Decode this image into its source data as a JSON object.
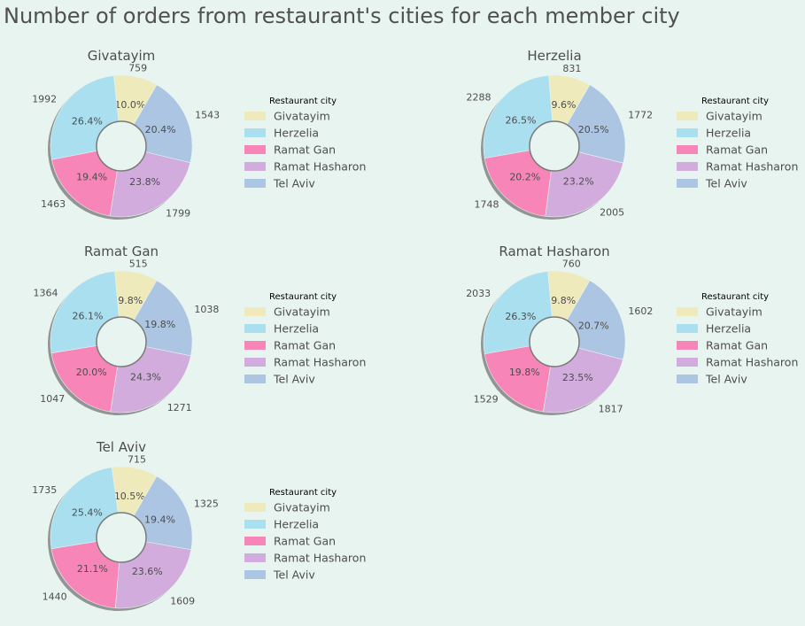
{
  "title": "Number of orders from restaurant's cities for each member city",
  "legend_title": "Restaurant city",
  "colors": {
    "background": "#e8f4f0",
    "Givatayim": "#eeeabb",
    "Herzelia": "#aadff0",
    "Ramat Gan": "#f785b8",
    "Ramat Hasharon": "#d2acdc",
    "Tel Aviv": "#abc5e2"
  },
  "chart_data": [
    {
      "type": "pie",
      "title": "Givatayim",
      "categories": [
        "Givatayim",
        "Herzelia",
        "Ramat Gan",
        "Ramat Hasharon",
        "Tel Aviv"
      ],
      "values": [
        759,
        1992,
        1463,
        1799,
        1543
      ],
      "percent_labels": [
        "10.0%",
        "26.4%",
        "19.4%",
        "23.8%",
        "20.4%"
      ],
      "legend_title": "Restaurant city"
    },
    {
      "type": "pie",
      "title": "Herzelia",
      "categories": [
        "Givatayim",
        "Herzelia",
        "Ramat Gan",
        "Ramat Hasharon",
        "Tel Aviv"
      ],
      "values": [
        831,
        2288,
        1748,
        2005,
        1772
      ],
      "percent_labels": [
        "9.6%",
        "26.5%",
        "20.2%",
        "23.2%",
        "20.5%"
      ],
      "legend_title": "Restaurant city"
    },
    {
      "type": "pie",
      "title": "Ramat Gan",
      "categories": [
        "Givatayim",
        "Herzelia",
        "Ramat Gan",
        "Ramat Hasharon",
        "Tel Aviv"
      ],
      "values": [
        515,
        1364,
        1047,
        1271,
        1038
      ],
      "percent_labels": [
        "9.8%",
        "26.1%",
        "20.0%",
        "24.3%",
        "19.8%"
      ],
      "legend_title": "Restaurant city"
    },
    {
      "type": "pie",
      "title": "Ramat Hasharon",
      "categories": [
        "Givatayim",
        "Herzelia",
        "Ramat Gan",
        "Ramat Hasharon",
        "Tel Aviv"
      ],
      "values": [
        760,
        2033,
        1529,
        1817,
        1602
      ],
      "percent_labels": [
        "9.8%",
        "26.3%",
        "19.8%",
        "23.5%",
        "20.7%"
      ],
      "legend_title": "Restaurant city"
    },
    {
      "type": "pie",
      "title": "Tel Aviv",
      "categories": [
        "Givatayim",
        "Herzelia",
        "Ramat Gan",
        "Ramat Hasharon",
        "Tel Aviv"
      ],
      "values": [
        715,
        1735,
        1440,
        1609,
        1325
      ],
      "percent_labels": [
        "10.5%",
        "25.4%",
        "21.1%",
        "23.6%",
        "19.4%"
      ],
      "legend_title": "Restaurant city"
    }
  ]
}
